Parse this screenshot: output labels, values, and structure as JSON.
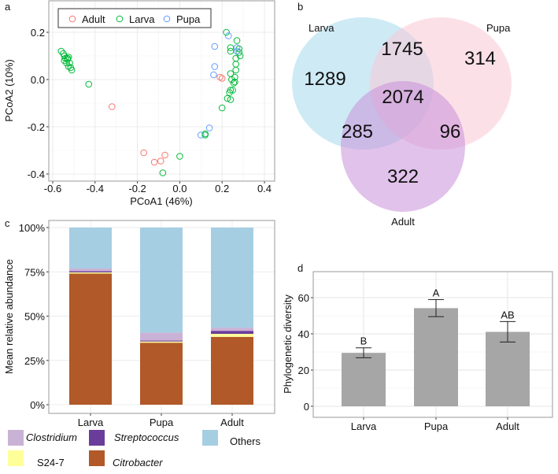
{
  "chart_data": [
    {
      "panel": "a",
      "type": "scatter",
      "xlabel": "PCoA1 (46%)",
      "ylabel": "PCoA2 (10%)",
      "xlim": [
        -0.62,
        0.44
      ],
      "ylim": [
        -0.43,
        0.245
      ],
      "xticks": [
        "-0.6",
        "-0.4",
        "-0.2",
        "0.0",
        "0.2",
        "0.4"
      ],
      "xtick_values": [
        -0.6,
        -0.4,
        -0.2,
        0.0,
        0.2,
        0.4
      ],
      "yticks": [
        "0.2",
        "0.0",
        "-0.2",
        "-0.4"
      ],
      "ytick_values": [
        0.2,
        0.0,
        -0.2,
        -0.4
      ],
      "legend_placement": "top-left",
      "series": [
        {
          "name": "Adult",
          "color": "#F8766D",
          "points": [
            [
              -0.32,
              -0.115
            ],
            [
              -0.17,
              -0.31
            ],
            [
              -0.12,
              -0.35
            ],
            [
              -0.09,
              -0.345
            ],
            [
              -0.07,
              -0.32
            ],
            [
              0.19,
              0.01
            ],
            [
              0.2,
              0.005
            ]
          ]
        },
        {
          "name": "Larva",
          "color": "#00BA38",
          "points": [
            [
              -0.56,
              0.12
            ],
            [
              -0.55,
              0.11
            ],
            [
              -0.545,
              0.1
            ],
            [
              -0.54,
              0.09
            ],
            [
              -0.545,
              0.08
            ],
            [
              -0.535,
              0.07
            ],
            [
              -0.53,
              0.085
            ],
            [
              -0.525,
              0.095
            ],
            [
              -0.52,
              0.07
            ],
            [
              -0.525,
              0.055
            ],
            [
              -0.515,
              0.05
            ],
            [
              -0.51,
              0.04
            ],
            [
              -0.53,
              0.09
            ],
            [
              -0.43,
              -0.02
            ],
            [
              0.0,
              -0.325
            ],
            [
              -0.08,
              -0.395
            ],
            [
              0.12,
              -0.235
            ],
            [
              0.12,
              -0.23
            ],
            [
              0.22,
              0.2
            ],
            [
              0.24,
              0.135
            ],
            [
              0.24,
              0.12
            ],
            [
              0.27,
              0.165
            ],
            [
              0.28,
              0.13
            ],
            [
              0.28,
              0.115
            ],
            [
              0.285,
              0.1
            ],
            [
              0.265,
              0.09
            ],
            [
              0.265,
              0.065
            ],
            [
              0.265,
              0.04
            ],
            [
              0.24,
              0.025
            ],
            [
              0.245,
              0.0
            ],
            [
              0.26,
              0.01
            ],
            [
              0.26,
              -0.01
            ],
            [
              0.255,
              -0.015
            ],
            [
              0.24,
              -0.045
            ],
            [
              0.235,
              -0.055
            ],
            [
              0.225,
              -0.08
            ],
            [
              0.24,
              -0.085
            ],
            [
              0.2,
              -0.12
            ],
            [
              0.25,
              -0.045
            ]
          ]
        },
        {
          "name": "Pupa",
          "color": "#619CFF",
          "points": [
            [
              0.1,
              -0.235
            ],
            [
              0.14,
              -0.205
            ],
            [
              0.16,
              0.02
            ],
            [
              0.165,
              0.055
            ],
            [
              0.165,
              0.14
            ],
            [
              0.23,
              0.185
            ],
            [
              0.27,
              0.135
            ],
            [
              0.27,
              0.12
            ]
          ]
        }
      ]
    },
    {
      "panel": "b",
      "type": "venn",
      "sets": [
        {
          "name": "Larva",
          "color": "#a6d8ec"
        },
        {
          "name": "Pupa",
          "color": "#f9c6d6"
        },
        {
          "name": "Adult",
          "color": "#c98fd9"
        }
      ],
      "regions": {
        "Larva_only": "1289",
        "Larva_Pupa": "1745",
        "Pupa_only": "314",
        "all": "2074",
        "Larva_Adult": "285",
        "Pupa_Adult": "96",
        "Adult_only": "322"
      }
    },
    {
      "panel": "c",
      "type": "bar",
      "stacked": true,
      "ylabel": "Mean relative abundance",
      "categories": [
        "Larva",
        "Pupa",
        "Adult"
      ],
      "yticks": [
        "0%",
        "25%",
        "50%",
        "75%",
        "100%"
      ],
      "ylim": [
        0,
        100
      ],
      "series": [
        {
          "name": "Citrobacter",
          "italic": true,
          "color": "#B15928",
          "values": [
            74,
            35,
            38.3
          ]
        },
        {
          "name": "S24-7",
          "italic": false,
          "color": "#FFFF99",
          "values": [
            0.7,
            0.7,
            1.7
          ]
        },
        {
          "name": "Streptococcus",
          "italic": true,
          "color": "#6A3D9A",
          "values": [
            0.7,
            0.5,
            1.7
          ]
        },
        {
          "name": "Clostridium",
          "italic": true,
          "color": "#CAB2D6",
          "values": [
            1.5,
            4.5,
            1.8
          ]
        },
        {
          "name": "Others",
          "italic": false,
          "color": "#A6CEE3",
          "values": [
            23.1,
            59.3,
            56.5
          ]
        }
      ]
    },
    {
      "panel": "d",
      "type": "bar",
      "ylabel": "Phylogenetic diversity",
      "categories": [
        "Larva",
        "Pupa",
        "Adult"
      ],
      "values": [
        29.5,
        54.2,
        41.1
      ],
      "error_low": [
        26.8,
        49.5,
        35.5
      ],
      "error_high": [
        32.3,
        58.9,
        46.8
      ],
      "letters": [
        "B",
        "A",
        "AB"
      ],
      "yticks": [
        "0",
        "20",
        "40",
        "60"
      ],
      "ylim": [
        -5,
        75
      ],
      "color": "#A6A6A6"
    }
  ],
  "panel_labels": [
    "a",
    "b",
    "c",
    "d"
  ]
}
